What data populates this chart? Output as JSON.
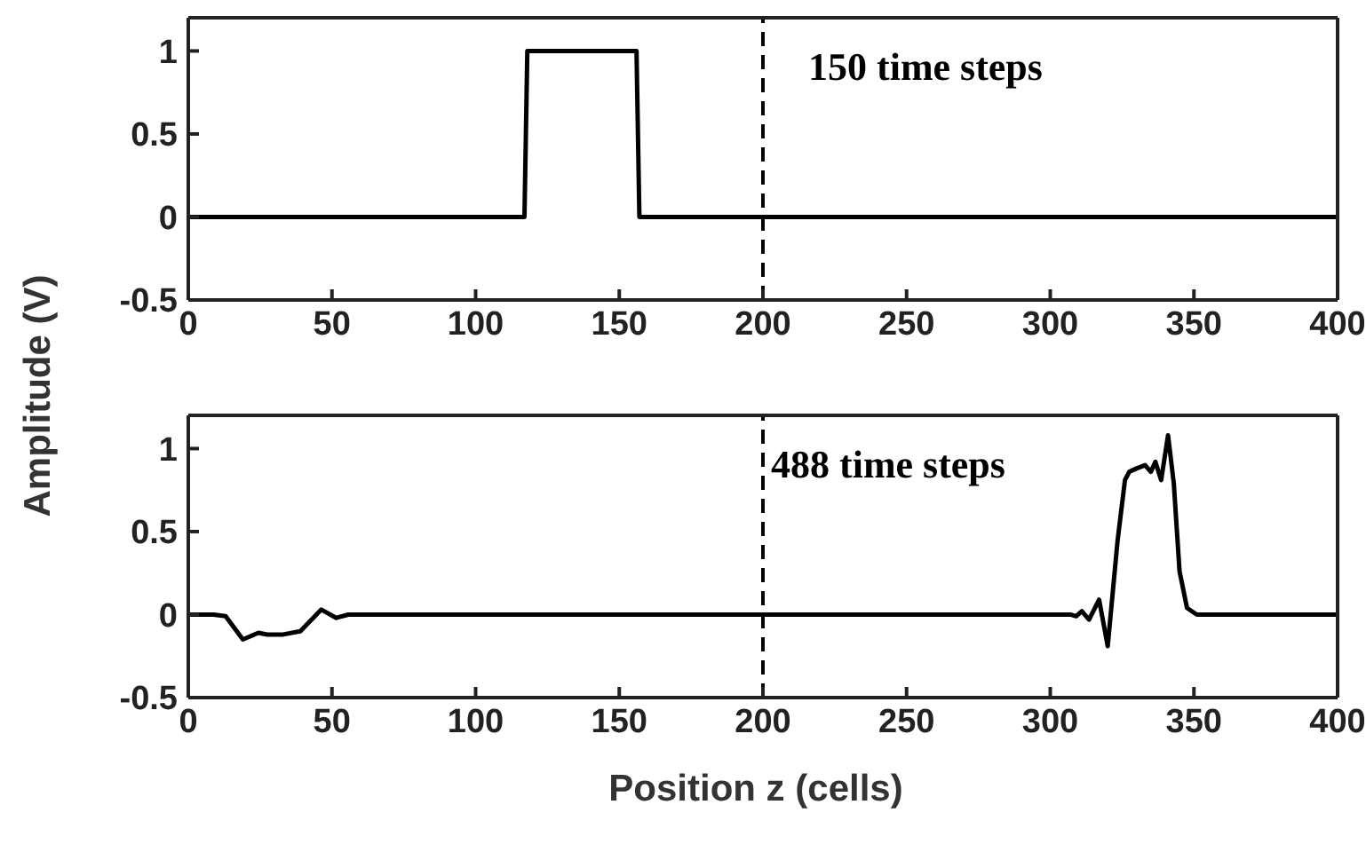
{
  "chart_data": [
    {
      "type": "line",
      "ylabel": "Amplitude (V)",
      "annotations": [
        "150 time steps"
      ],
      "xlim": [
        0,
        400
      ],
      "xticks": [
        0,
        50,
        100,
        150,
        200,
        250,
        300,
        350,
        400
      ],
      "ylim": [
        -0.5,
        1.2
      ],
      "yticks": [
        -0.5,
        0,
        0.5,
        1
      ],
      "marker": "none",
      "line_style": "solid",
      "ref_lines": [
        {
          "axis": "x",
          "value": 200,
          "line_style": "dashed",
          "color": "#000000"
        }
      ],
      "series": [
        {
          "color": "#000000",
          "x": [
            0,
            117,
            118,
            156,
            157,
            400
          ],
          "values": [
            0,
            0,
            1,
            1,
            0,
            0
          ]
        }
      ]
    },
    {
      "type": "line",
      "xlabel": "Position z (cells)",
      "annotations": [
        "488 time steps"
      ],
      "xlim": [
        0,
        400
      ],
      "xticks": [
        0,
        50,
        100,
        150,
        200,
        250,
        300,
        350,
        400
      ],
      "ylim": [
        -0.5,
        1.2
      ],
      "yticks": [
        -0.5,
        0,
        0.5,
        1
      ],
      "marker": "none",
      "line_style": "solid",
      "ref_lines": [
        {
          "axis": "x",
          "value": 200,
          "line_style": "dashed",
          "color": "#000000"
        }
      ],
      "series": [
        {
          "color": "#000000",
          "x": [
            0,
            8.8,
            13,
            19,
            24.4,
            27.5,
            33,
            39,
            46.3,
            51.5,
            55.7,
            61,
            307,
            309,
            311,
            313.5,
            317,
            320,
            323.4,
            326,
            327.5,
            330,
            333,
            335,
            336.6,
            338.6,
            341,
            343,
            345,
            347.6,
            351,
            400
          ],
          "values": [
            0,
            0,
            -0.01,
            -0.15,
            -0.11,
            -0.12,
            -0.12,
            -0.1,
            0.03,
            -0.02,
            0,
            0,
            0,
            -0.01,
            0.02,
            -0.03,
            0.09,
            -0.19,
            0.44,
            0.81,
            0.86,
            0.88,
            0.9,
            0.86,
            0.92,
            0.81,
            1.08,
            0.79,
            0.26,
            0.04,
            0,
            0
          ]
        }
      ]
    }
  ]
}
